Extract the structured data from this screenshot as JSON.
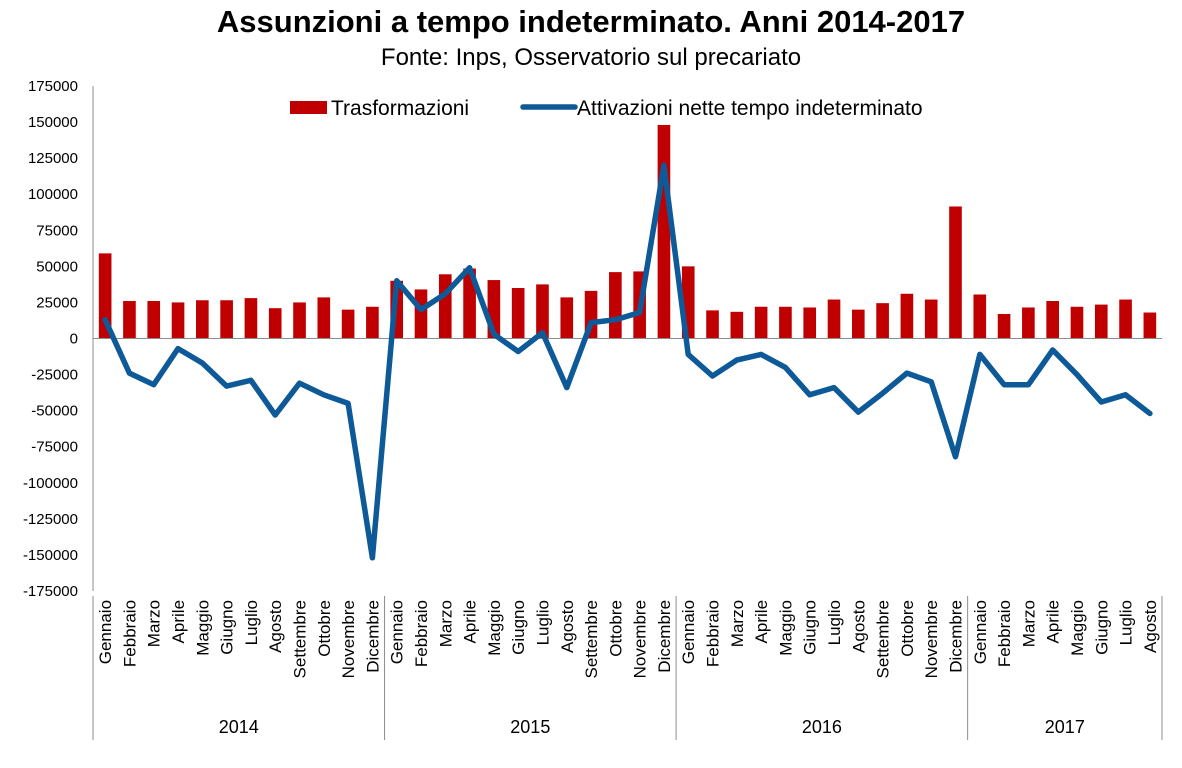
{
  "chart_data": {
    "type": "bar",
    "title": "Assunzioni a tempo indeterminato. Anni 2014-2017",
    "subtitle": "Fonte: Inps, Osservatorio sul precariato",
    "ylim": [
      -175000,
      175000
    ],
    "yticks": [
      "175000",
      "150000",
      "125000",
      "100000",
      "75000",
      "50000",
      "25000",
      "0",
      "-25000",
      "-50000",
      "-75000",
      "-100000",
      "-125000",
      "-150000",
      "-175000"
    ],
    "years": [
      {
        "label": "2014",
        "count": 12
      },
      {
        "label": "2015",
        "count": 12
      },
      {
        "label": "2016",
        "count": 12
      },
      {
        "label": "2017",
        "count": 8
      }
    ],
    "categories": [
      "Gennaio",
      "Febbraio",
      "Marzo",
      "Aprile",
      "Maggio",
      "Giugno",
      "Luglio",
      "Agosto",
      "Settembre",
      "Ottobre",
      "Novembre",
      "Dicembre",
      "Gennaio",
      "Febbraio",
      "Marzo",
      "Aprile",
      "Maggio",
      "Giugno",
      "Luglio",
      "Agosto",
      "Settembre",
      "Ottobre",
      "Novembre",
      "Dicembre",
      "Gennaio",
      "Febbraio",
      "Marzo",
      "Aprile",
      "Maggio",
      "Giugno",
      "Luglio",
      "Agosto",
      "Settembre",
      "Ottobre",
      "Novembre",
      "Dicembre",
      "Gennaio",
      "Febbraio",
      "Marzo",
      "Aprile",
      "Maggio",
      "Giugno",
      "Luglio",
      "Agosto"
    ],
    "series": [
      {
        "name": "Trasformazioni",
        "kind": "bar",
        "color": "#c00000",
        "values": [
          59000,
          26000,
          26000,
          25000,
          26500,
          26500,
          28000,
          21000,
          25000,
          28500,
          20000,
          22000,
          40000,
          34000,
          44500,
          48500,
          40500,
          35000,
          37500,
          28500,
          33000,
          46000,
          46500,
          148000,
          50000,
          19500,
          18500,
          22000,
          22000,
          21500,
          27000,
          20000,
          24500,
          31000,
          27000,
          91500,
          30500,
          17000,
          21500,
          26000,
          22000,
          23500,
          27000,
          18000
        ]
      },
      {
        "name": "Attivazioni nette tempo indeterminato",
        "kind": "line",
        "color": "#0e5a98",
        "values": [
          13000,
          -24000,
          -32000,
          -7000,
          -17000,
          -33000,
          -29000,
          -53000,
          -31000,
          -39000,
          -45000,
          -152000,
          40000,
          20000,
          31000,
          49000,
          3000,
          -9000,
          4000,
          -34000,
          11000,
          13000,
          18000,
          120000,
          -11000,
          -26000,
          -15000,
          -11000,
          -20000,
          -39000,
          -34000,
          -51000,
          -38000,
          -24000,
          -30000,
          -82000,
          -11000,
          -32000,
          -32000,
          -8000,
          -25000,
          -44000,
          -39000,
          -52000
        ]
      }
    ],
    "legend_position": "top-center",
    "grid": false
  }
}
